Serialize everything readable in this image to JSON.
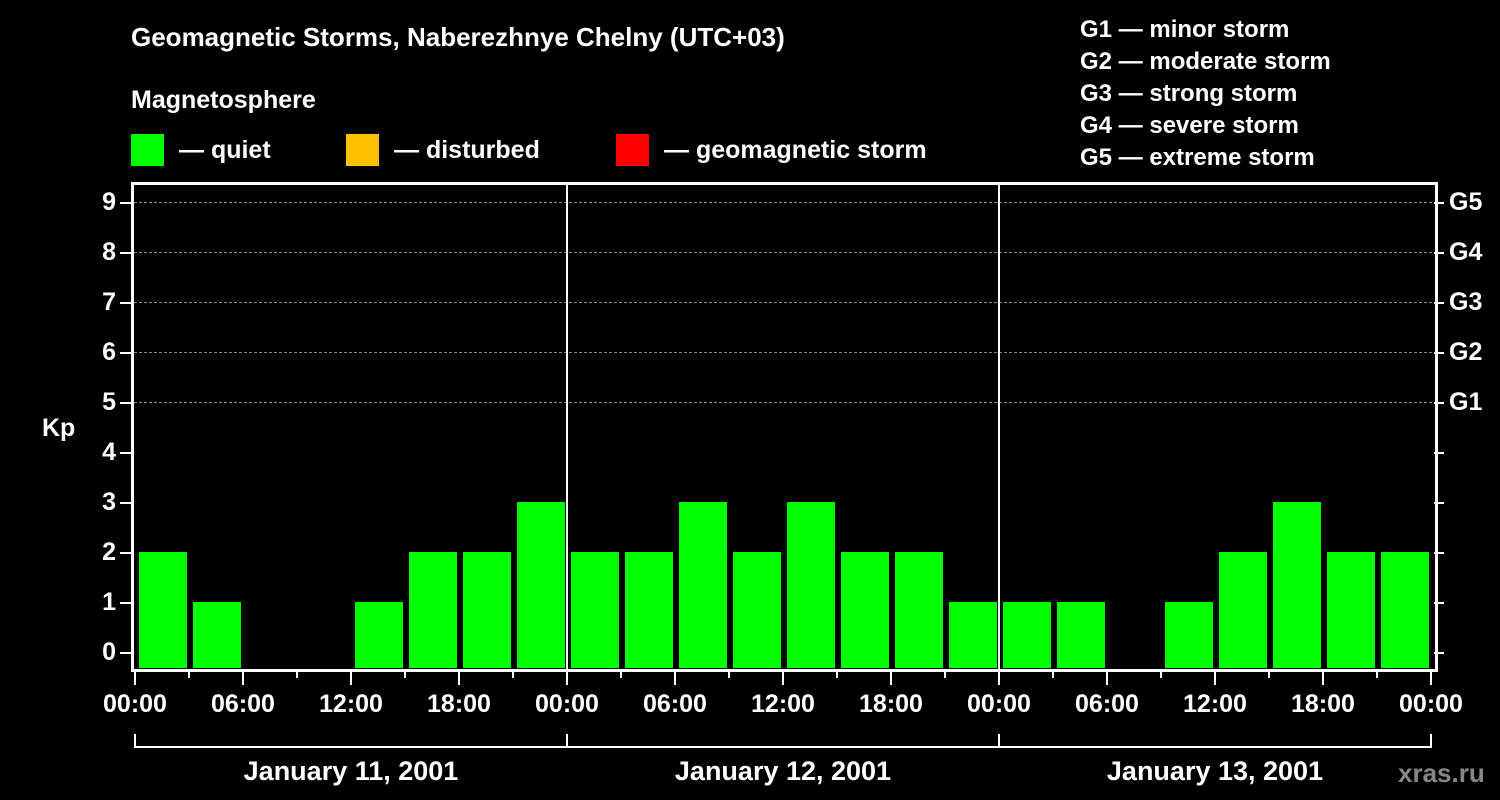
{
  "header": {
    "title": "Geomagnetic Storms, Naberezhnye Chelny (UTC+03)",
    "subtitle": "Magnetosphere"
  },
  "legend": [
    {
      "label": "— quiet",
      "color": "#00ff00"
    },
    {
      "label": "— disturbed",
      "color": "#ffc000"
    },
    {
      "label": "— geomagnetic storm",
      "color": "#ff0000"
    }
  ],
  "g_levels": [
    "G1 — minor storm",
    "G2 — moderate storm",
    "G3 — strong storm",
    "G4 — severe storm",
    "G5 — extreme storm"
  ],
  "axes": {
    "ylabel": "Kp",
    "yticks": [
      "0",
      "1",
      "2",
      "3",
      "4",
      "5",
      "6",
      "7",
      "8",
      "9"
    ],
    "right_labels": [
      "G1",
      "G2",
      "G3",
      "G4",
      "G5"
    ],
    "xticks": [
      "00:00",
      "06:00",
      "12:00",
      "18:00",
      "00:00",
      "06:00",
      "12:00",
      "18:00",
      "00:00",
      "06:00",
      "12:00",
      "18:00",
      "00:00"
    ],
    "days": [
      "January 11, 2001",
      "January 12, 2001",
      "January 13, 2001"
    ]
  },
  "watermark": "xras.ru",
  "chart_data": {
    "type": "bar",
    "title": "Geomagnetic Storms, Naberezhnye Chelny (UTC+03)",
    "subtitle": "Magnetosphere",
    "xlabel": "",
    "ylabel": "Kp",
    "ylim": [
      0,
      9
    ],
    "grid": "dashed horizontal at Kp 5-9",
    "legend": [
      "quiet",
      "disturbed",
      "geomagnetic storm"
    ],
    "right_axis": {
      "5": "G1",
      "6": "G2",
      "7": "G3",
      "8": "G4",
      "9": "G5"
    },
    "categories": [
      "Jan 11 00-03",
      "Jan 11 03-06",
      "Jan 11 06-09",
      "Jan 11 09-12",
      "Jan 11 12-15",
      "Jan 11 15-18",
      "Jan 11 18-21",
      "Jan 11 21-24",
      "Jan 12 00-03",
      "Jan 12 03-06",
      "Jan 12 06-09",
      "Jan 12 09-12",
      "Jan 12 12-15",
      "Jan 12 15-18",
      "Jan 12 18-21",
      "Jan 12 21-24",
      "Jan 13 00-03",
      "Jan 13 03-06",
      "Jan 13 06-09",
      "Jan 13 09-12",
      "Jan 13 12-15",
      "Jan 13 15-18",
      "Jan 13 18-21",
      "Jan 13 21-24"
    ],
    "values": [
      2,
      1,
      0,
      0,
      1,
      2,
      2,
      3,
      2,
      2,
      3,
      2,
      3,
      2,
      2,
      1,
      1,
      1,
      0,
      1,
      2,
      3,
      2,
      2
    ],
    "status": "all quiet"
  }
}
